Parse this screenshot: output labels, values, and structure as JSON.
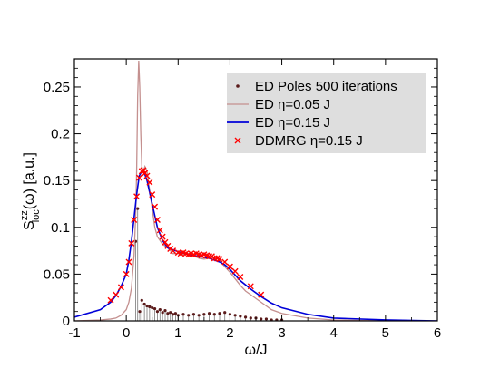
{
  "chart_data": {
    "type": "line",
    "xlabel": "ω/J",
    "ylabel": {
      "main": "S",
      "superscript": "zz",
      "subscript": "loc",
      "suffix": "(ω) [a.u.]"
    },
    "xlim": [
      -1,
      6
    ],
    "ylim": [
      0,
      0.28
    ],
    "x_ticks": [
      -1,
      0,
      1,
      2,
      3,
      4,
      5,
      6
    ],
    "y_ticks": [
      0,
      0.05,
      0.1,
      0.15,
      0.2,
      0.25
    ],
    "y_tick_labels": [
      "0",
      "0.05",
      "0.1",
      "0.15",
      "0.2",
      "0.25"
    ],
    "grid": false,
    "legend_position": "top-right",
    "colors": {
      "ed_poles": "#5a1a1a",
      "ed_005": "#c4908f",
      "ed_015": "#0000d8",
      "ddmrg": "#ff0000",
      "legend_bg": "#dedede"
    },
    "series": [
      {
        "name": "ED Poles 500 iterations",
        "kind": "stem",
        "points": [
          [
            0.18,
            0.085
          ],
          [
            0.22,
            0.12
          ],
          [
            0.26,
            0.01
          ],
          [
            0.3,
            0.022
          ],
          [
            0.35,
            0.018
          ],
          [
            0.4,
            0.016
          ],
          [
            0.45,
            0.015
          ],
          [
            0.5,
            0.014
          ],
          [
            0.55,
            0.013
          ],
          [
            0.6,
            0.01
          ],
          [
            0.65,
            0.012
          ],
          [
            0.7,
            0.009
          ],
          [
            0.75,
            0.011
          ],
          [
            0.8,
            0.008
          ],
          [
            0.85,
            0.009
          ],
          [
            0.9,
            0.007
          ],
          [
            0.95,
            0.008
          ],
          [
            1.0,
            0.006
          ],
          [
            1.1,
            0.007
          ],
          [
            1.2,
            0.006
          ],
          [
            1.3,
            0.007
          ],
          [
            1.4,
            0.006
          ],
          [
            1.5,
            0.007
          ],
          [
            1.6,
            0.008
          ],
          [
            1.7,
            0.007
          ],
          [
            1.8,
            0.008
          ],
          [
            1.9,
            0.009
          ],
          [
            2.0,
            0.007
          ],
          [
            2.1,
            0.006
          ],
          [
            2.2,
            0.005
          ],
          [
            2.3,
            0.004
          ],
          [
            2.4,
            0.003
          ],
          [
            2.5,
            0.003
          ],
          [
            2.6,
            0.002
          ],
          [
            2.7,
            0.002
          ],
          [
            2.8,
            0.001
          ],
          [
            2.9,
            0.001
          ],
          [
            3.0,
            0.001
          ]
        ]
      },
      {
        "name": "ED η=0.05 J",
        "kind": "line",
        "x": [
          -1,
          -0.5,
          -0.3,
          -0.2,
          -0.1,
          0,
          0.05,
          0.1,
          0.15,
          0.18,
          0.2,
          0.22,
          0.24,
          0.26,
          0.28,
          0.3,
          0.33,
          0.36,
          0.4,
          0.45,
          0.5,
          0.55,
          0.6,
          0.7,
          0.8,
          0.9,
          1.0,
          1.1,
          1.2,
          1.3,
          1.4,
          1.5,
          1.6,
          1.7,
          1.8,
          1.9,
          2.0,
          2.1,
          2.2,
          2.3,
          2.4,
          2.6,
          2.8,
          3.0,
          3.5,
          4.0,
          5.0,
          6.0
        ],
        "y": [
          0,
          0.001,
          0.002,
          0.003,
          0.006,
          0.012,
          0.02,
          0.035,
          0.07,
          0.11,
          0.16,
          0.24,
          0.278,
          0.25,
          0.2,
          0.165,
          0.16,
          0.165,
          0.16,
          0.14,
          0.12,
          0.1,
          0.09,
          0.082,
          0.078,
          0.072,
          0.072,
          0.071,
          0.072,
          0.07,
          0.067,
          0.066,
          0.067,
          0.068,
          0.065,
          0.058,
          0.052,
          0.045,
          0.038,
          0.032,
          0.028,
          0.02,
          0.012,
          0.008,
          0.003,
          0.001,
          0,
          0
        ]
      },
      {
        "name": "ED η=0.15 J",
        "kind": "line",
        "x": [
          -1,
          -0.5,
          -0.3,
          -0.2,
          -0.1,
          0,
          0.05,
          0.1,
          0.15,
          0.2,
          0.25,
          0.3,
          0.35,
          0.4,
          0.5,
          0.6,
          0.7,
          0.8,
          1.0,
          1.2,
          1.4,
          1.6,
          1.8,
          1.9,
          2.0,
          2.1,
          2.2,
          2.4,
          2.6,
          2.8,
          3.0,
          3.5,
          4.0,
          5.0,
          6.0
        ],
        "y": [
          0.004,
          0.012,
          0.02,
          0.027,
          0.037,
          0.05,
          0.065,
          0.085,
          0.11,
          0.135,
          0.155,
          0.16,
          0.158,
          0.15,
          0.125,
          0.1,
          0.086,
          0.078,
          0.074,
          0.071,
          0.069,
          0.067,
          0.063,
          0.06,
          0.055,
          0.049,
          0.043,
          0.034,
          0.026,
          0.019,
          0.014,
          0.007,
          0.003,
          0.001,
          0
        ]
      },
      {
        "name": "DDMRG η=0.15 J",
        "kind": "scatter",
        "x": [
          -0.3,
          -0.2,
          -0.1,
          0,
          0.05,
          0.1,
          0.15,
          0.2,
          0.25,
          0.3,
          0.33,
          0.36,
          0.4,
          0.45,
          0.5,
          0.55,
          0.6,
          0.65,
          0.7,
          0.75,
          0.8,
          0.85,
          0.9,
          1.0,
          1.05,
          1.1,
          1.15,
          1.2,
          1.25,
          1.3,
          1.35,
          1.4,
          1.45,
          1.5,
          1.55,
          1.6,
          1.65,
          1.7,
          1.75,
          1.8,
          1.9,
          2.0,
          2.1,
          2.2,
          2.4,
          2.6
        ],
        "y": [
          0.022,
          0.028,
          0.036,
          0.05,
          0.063,
          0.083,
          0.108,
          0.133,
          0.153,
          0.16,
          0.161,
          0.158,
          0.155,
          0.148,
          0.135,
          0.122,
          0.108,
          0.097,
          0.09,
          0.084,
          0.08,
          0.077,
          0.075,
          0.073,
          0.072,
          0.073,
          0.072,
          0.071,
          0.072,
          0.071,
          0.072,
          0.071,
          0.07,
          0.071,
          0.07,
          0.069,
          0.069,
          0.067,
          0.067,
          0.066,
          0.063,
          0.058,
          0.053,
          0.047,
          0.037,
          0.028
        ]
      }
    ]
  }
}
